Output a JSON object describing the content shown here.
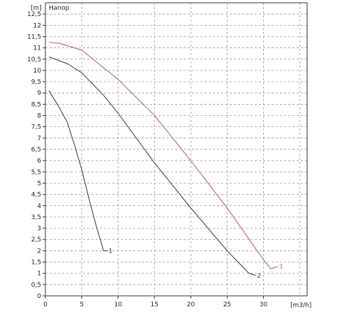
{
  "chart_data": {
    "type": "line",
    "title": "Напор",
    "y_unit_label": "[m]",
    "x_unit_label": "[m3/h]",
    "xlim": [
      0,
      36
    ],
    "ylim": [
      0,
      13
    ],
    "grid": true,
    "x_ticks": [
      0,
      5,
      10,
      15,
      20,
      25,
      30
    ],
    "x_tick_labels": [
      "0",
      "5",
      "10",
      "15",
      "20",
      "25",
      "30"
    ],
    "y_ticks": [
      0,
      0.5,
      1,
      1.5,
      2,
      2.5,
      3,
      3.5,
      4,
      4.5,
      5,
      5.5,
      6,
      6.5,
      7,
      7.5,
      8,
      8.5,
      9,
      9.5,
      10,
      10.5,
      11,
      11.5,
      12,
      12.5
    ],
    "y_tick_labels": [
      "0",
      "0,5",
      "1",
      "1,5",
      "2",
      "2,5",
      "3",
      "3,5",
      "4",
      "4,5",
      "5",
      "5,5",
      "6",
      "6,5",
      "7",
      "7,5",
      "8",
      "8,5",
      "9",
      "9,5",
      "10",
      "10,5",
      "11",
      "11,5",
      "12",
      "12,5"
    ],
    "series": [
      {
        "name": "1",
        "color": "#444444",
        "points": [
          [
            0.5,
            9.1
          ],
          [
            2,
            8.3
          ],
          [
            3,
            7.7
          ],
          [
            4,
            6.7
          ],
          [
            5,
            5.6
          ],
          [
            6,
            4.3
          ],
          [
            7,
            3.1
          ],
          [
            8,
            2.0
          ],
          [
            8.6,
            2.0
          ]
        ]
      },
      {
        "name": "2",
        "color": "#444444",
        "points": [
          [
            0.5,
            10.6
          ],
          [
            3,
            10.3
          ],
          [
            5,
            9.9
          ],
          [
            8,
            8.9
          ],
          [
            10,
            8.1
          ],
          [
            15,
            5.9
          ],
          [
            20,
            3.9
          ],
          [
            25,
            2.0
          ],
          [
            28,
            1.0
          ],
          [
            29,
            0.9
          ]
        ]
      },
      {
        "name": "3",
        "color": "#b06a78",
        "points": [
          [
            0.5,
            11.25
          ],
          [
            2,
            11.2
          ],
          [
            5,
            10.9
          ],
          [
            10,
            9.6
          ],
          [
            15,
            8.0
          ],
          [
            20,
            6.0
          ],
          [
            25,
            3.9
          ],
          [
            30,
            1.6
          ],
          [
            31,
            1.2
          ],
          [
            32,
            1.3
          ]
        ]
      }
    ]
  }
}
